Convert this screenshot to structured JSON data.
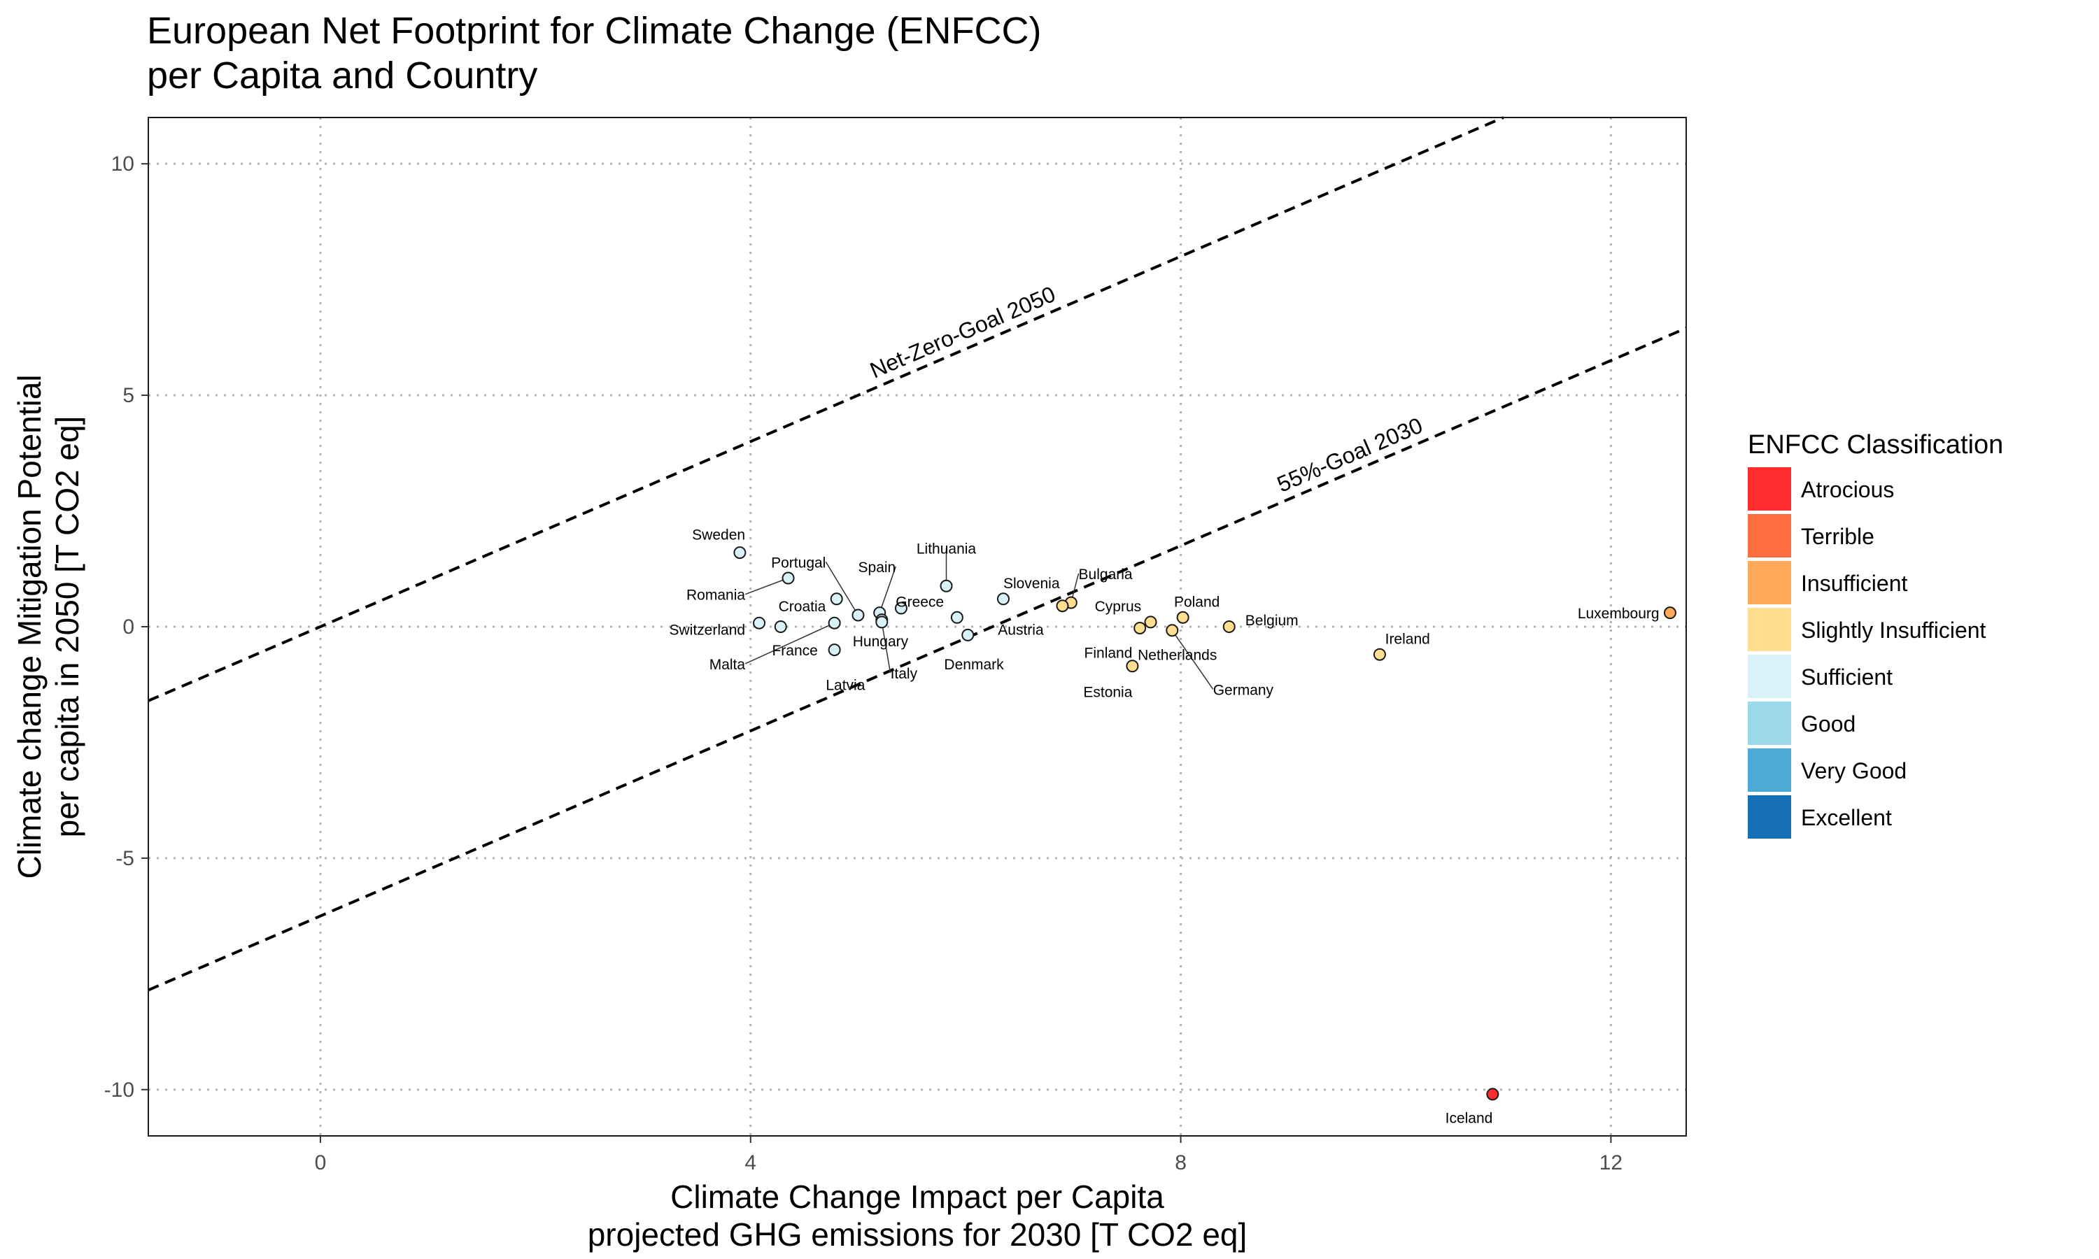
{
  "chart_data": {
    "type": "scatter",
    "title_lines": [
      "European Net Footprint for Climate Change (ENFCC)",
      "per Capita and Country"
    ],
    "xlabel_lines": [
      "Climate Change Impact per Capita",
      "projected GHG emissions for 2030 [T CO2 eq]"
    ],
    "ylabel_lines": [
      "Climate change Mitigation Potential",
      "per capita in 2050 [T CO2 eq]"
    ],
    "xlim": [
      -1.6,
      12.7
    ],
    "ylim": [
      -11.0,
      11.0
    ],
    "x_ticks": [
      0,
      4,
      8,
      12
    ],
    "x_tick_labels": [
      "0",
      "4",
      "8",
      "12"
    ],
    "y_ticks": [
      10,
      5,
      0,
      -5,
      -10
    ],
    "y_tick_labels": [
      "10",
      "5",
      "0",
      "-5",
      "-10"
    ],
    "grid": "dotted",
    "legend": {
      "title": "ENFCC Classification",
      "placement": "right",
      "entries": [
        {
          "label": "Atrocious",
          "color": "#ff2d2d"
        },
        {
          "label": "Terrible",
          "color": "#ff6e40"
        },
        {
          "label": "Insufficient",
          "color": "#ffaa5a"
        },
        {
          "label": "Slightly Insufficient",
          "color": "#ffde91"
        },
        {
          "label": "Sufficient",
          "color": "#d9f1f8"
        },
        {
          "label": "Good",
          "color": "#9ad8ea"
        },
        {
          "label": "Very Good",
          "color": "#4cabd6"
        },
        {
          "label": "Excellent",
          "color": "#1670b7"
        }
      ]
    },
    "reference_lines": [
      {
        "label": "Net-Zero-Goal 2050",
        "slope": 1.0,
        "intercept": 0.0,
        "label_at_x": 6.0
      },
      {
        "label": "55%-Goal 2030",
        "slope": 1.0,
        "intercept": -6.25,
        "label_at_x": 9.6
      }
    ],
    "points": [
      {
        "name": "Sweden",
        "x": 3.9,
        "y": 1.6,
        "cls": "Sufficient",
        "label_anchor": "end",
        "label_x": 3.95,
        "label_y": 2.0
      },
      {
        "name": "Romania",
        "x": 4.35,
        "y": 1.05,
        "cls": "Sufficient",
        "label_anchor": "end",
        "label_x": 3.95,
        "label_y": 0.7,
        "leader": true
      },
      {
        "name": "Portugal",
        "x": 5.0,
        "y": 0.25,
        "cls": "Sufficient",
        "label_anchor": "end",
        "label_x": 4.7,
        "label_y": 1.4,
        "leader": true
      },
      {
        "name": "Croatia",
        "x": 4.8,
        "y": 0.6,
        "cls": "Sufficient",
        "label_anchor": "end",
        "label_x": 4.7,
        "label_y": 0.45
      },
      {
        "name": "Spain",
        "x": 5.2,
        "y": 0.3,
        "cls": "Sufficient",
        "label_anchor": "end",
        "label_x": 5.35,
        "label_y": 1.3,
        "leader": true
      },
      {
        "name": "Greece",
        "x": 5.4,
        "y": 0.4,
        "cls": "Sufficient",
        "label_anchor": "start",
        "label_x": 5.35,
        "label_y": 0.55
      },
      {
        "name": "Switzerland",
        "x": 4.08,
        "y": 0.08,
        "cls": "Sufficient",
        "label_anchor": "end",
        "label_x": 3.95,
        "label_y": -0.05
      },
      {
        "name": "France",
        "x": 4.28,
        "y": 0.0,
        "cls": "Sufficient",
        "label_anchor": "start",
        "label_x": 4.2,
        "label_y": -0.5
      },
      {
        "name": "Malta",
        "x": 4.78,
        "y": 0.08,
        "cls": "Sufficient",
        "label_anchor": "end",
        "label_x": 3.95,
        "label_y": -0.8,
        "leader": true
      },
      {
        "name": "Hungary",
        "x": 5.22,
        "y": 0.15,
        "cls": "Sufficient",
        "label_anchor": "start",
        "label_x": 4.95,
        "label_y": -0.3
      },
      {
        "name": "Latvia",
        "x": 4.78,
        "y": -0.5,
        "cls": "Sufficient",
        "label_anchor": "start",
        "label_x": 4.7,
        "label_y": -1.25
      },
      {
        "name": "Italy",
        "x": 5.22,
        "y": 0.1,
        "cls": "Sufficient",
        "label_anchor": "start",
        "label_x": 5.3,
        "label_y": -1.0,
        "leader": true
      },
      {
        "name": "Lithuania",
        "x": 5.82,
        "y": 0.88,
        "cls": "Sufficient",
        "label_anchor": "middle",
        "label_x": 5.82,
        "label_y": 1.7,
        "leader": true
      },
      {
        "name": "Denmark",
        "x": 5.92,
        "y": 0.2,
        "cls": "Sufficient",
        "label_anchor": "start",
        "label_x": 5.8,
        "label_y": -0.8
      },
      {
        "name": "Austria",
        "x": 6.02,
        "y": -0.18,
        "cls": "Sufficient",
        "label_anchor": "start",
        "label_x": 6.3,
        "label_y": -0.05
      },
      {
        "name": "Slovenia",
        "x": 6.35,
        "y": 0.6,
        "cls": "Sufficient",
        "label_anchor": "start",
        "label_x": 6.35,
        "label_y": 0.95
      },
      {
        "name": "Bulgaria",
        "x": 6.98,
        "y": 0.52,
        "cls": "Slightly Insufficient",
        "label_anchor": "start",
        "label_x": 7.05,
        "label_y": 1.15,
        "leader": true
      },
      {
        "name": "Cyprus",
        "x": 6.9,
        "y": 0.45,
        "cls": "Slightly Insufficient",
        "label_anchor": "start",
        "label_x": 7.2,
        "label_y": 0.45
      },
      {
        "name": "Poland",
        "x": 8.02,
        "y": 0.2,
        "cls": "Slightly Insufficient",
        "label_anchor": "middle",
        "label_x": 8.15,
        "label_y": 0.55
      },
      {
        "name": "Belgium",
        "x": 8.45,
        "y": 0.0,
        "cls": "Slightly Insufficient",
        "label_anchor": "start",
        "label_x": 8.6,
        "label_y": 0.15
      },
      {
        "name": "Finland",
        "x": 7.62,
        "y": -0.03,
        "cls": "Slightly Insufficient",
        "label_anchor": "end",
        "label_x": 7.55,
        "label_y": -0.55
      },
      {
        "name": "Netherlands",
        "x": 7.72,
        "y": 0.1,
        "cls": "Slightly Insufficient",
        "label_anchor": "start",
        "label_x": 7.6,
        "label_y": -0.6
      },
      {
        "name": "Germany",
        "x": 7.92,
        "y": -0.08,
        "cls": "Slightly Insufficient",
        "label_anchor": "start",
        "label_x": 8.3,
        "label_y": -1.35,
        "leader": true
      },
      {
        "name": "Estonia",
        "x": 7.55,
        "y": -0.85,
        "cls": "Slightly Insufficient",
        "label_anchor": "end",
        "label_x": 7.55,
        "label_y": -1.4
      },
      {
        "name": "Ireland",
        "x": 9.85,
        "y": -0.6,
        "cls": "Slightly Insufficient",
        "label_anchor": "start",
        "label_x": 9.9,
        "label_y": -0.25
      },
      {
        "name": "Luxembourg",
        "x": 12.55,
        "y": 0.3,
        "cls": "Insufficient",
        "label_anchor": "end",
        "label_x": 12.45,
        "label_y": 0.3
      },
      {
        "name": "Iceland",
        "x": 10.9,
        "y": -10.1,
        "cls": "Atrocious",
        "label_anchor": "end",
        "label_x": 10.9,
        "label_y": -10.6
      }
    ]
  }
}
